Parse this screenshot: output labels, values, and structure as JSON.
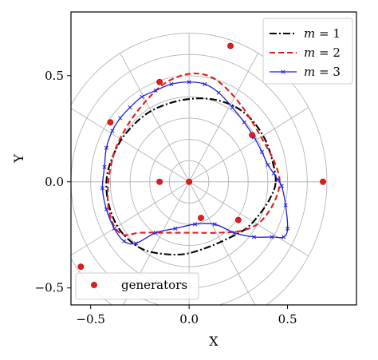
{
  "chart_data": {
    "type": "line",
    "xlabel": "X",
    "ylabel": "Y",
    "xlim": [
      -0.6,
      0.85
    ],
    "ylim": [
      -0.58,
      0.8
    ],
    "xticks": [
      -0.5,
      0.0,
      0.5
    ],
    "xtick_labels": [
      "−0.5",
      "0.0",
      "0.5"
    ],
    "yticks": [
      -0.5,
      0.0,
      0.5
    ],
    "ytick_labels": [
      "−0.5",
      "0.0",
      "0.5"
    ],
    "grid": "polar, rings at r = 0.1 to 0.7, spokes every 30 degrees",
    "polar_grid": {
      "radii": [
        0.1,
        0.2,
        0.3,
        0.4,
        0.5,
        0.6,
        0.7
      ],
      "spoke_step_deg": 30,
      "spoke_radius": 0.7,
      "color": "#b3b3b3"
    },
    "legend_placement": "top-right",
    "legend2_placement": "bottom-left",
    "series": [
      {
        "name": "m = 1",
        "label_var": "m",
        "label_eq": " = 1",
        "color": "#000000",
        "style": "dashdot",
        "x": [
          0.44,
          0.42,
          0.38,
          0.31,
          0.22,
          0.11,
          0.0,
          -0.1,
          -0.2,
          -0.28,
          -0.35,
          -0.4,
          -0.42,
          -0.41,
          -0.37,
          -0.31,
          -0.23,
          -0.13,
          -0.02,
          0.09,
          0.19,
          0.29,
          0.36,
          0.41,
          0.44
        ],
        "y": [
          0.0,
          0.11,
          0.21,
          0.3,
          0.36,
          0.39,
          0.39,
          0.37,
          0.33,
          0.27,
          0.19,
          0.09,
          0.0,
          -0.1,
          -0.2,
          -0.27,
          -0.32,
          -0.34,
          -0.34,
          -0.31,
          -0.27,
          -0.22,
          -0.15,
          -0.08,
          0.0
        ]
      },
      {
        "name": "m = 2",
        "label_var": "m",
        "label_eq": " = 2",
        "color": "#e41a1c",
        "style": "dashed",
        "x": [
          0.46,
          0.43,
          0.36,
          0.28,
          0.2,
          0.12,
          0.04,
          -0.04,
          -0.13,
          -0.22,
          -0.31,
          -0.38,
          -0.41,
          -0.41,
          -0.38,
          -0.33,
          -0.25,
          -0.12,
          0.02,
          0.15,
          0.27,
          0.36,
          0.43,
          0.46
        ],
        "y": [
          0.0,
          0.1,
          0.22,
          0.34,
          0.43,
          0.49,
          0.51,
          0.5,
          0.46,
          0.38,
          0.27,
          0.14,
          0.0,
          -0.12,
          -0.21,
          -0.25,
          -0.24,
          -0.24,
          -0.24,
          -0.24,
          -0.23,
          -0.19,
          -0.1,
          0.0
        ]
      },
      {
        "name": "m = 3",
        "label_var": "m",
        "label_eq": " = 3",
        "color": "#1f1fd6",
        "style": "solid-x-markers",
        "x": [
          0.47,
          0.49,
          0.5,
          0.48,
          0.42,
          0.33,
          0.23,
          0.13,
          0.03,
          -0.07,
          -0.17,
          -0.27,
          -0.33,
          -0.38,
          -0.42,
          -0.44,
          -0.43,
          -0.42,
          -0.39,
          -0.35,
          -0.3,
          -0.24,
          -0.17,
          -0.09,
          0.0,
          0.08,
          0.15,
          0.22,
          0.28,
          0.33,
          0.37,
          0.4,
          0.43,
          0.45,
          0.47
        ],
        "y": [
          -0.02,
          -0.11,
          -0.22,
          -0.26,
          -0.26,
          -0.26,
          -0.24,
          -0.2,
          -0.2,
          -0.22,
          -0.24,
          -0.29,
          -0.28,
          -0.22,
          -0.13,
          -0.03,
          0.07,
          0.16,
          0.24,
          0.3,
          0.35,
          0.4,
          0.43,
          0.46,
          0.47,
          0.46,
          0.42,
          0.35,
          0.28,
          0.21,
          0.14,
          0.08,
          0.04,
          0.01,
          -0.02
        ]
      }
    ],
    "generators": {
      "name": "generators",
      "color": "#e41a1c",
      "x": [
        0.0,
        -0.15,
        -0.15,
        -0.4,
        0.21,
        0.32,
        0.68,
        0.25,
        0.06,
        -0.55
      ],
      "y": [
        0.0,
        0.47,
        0.0,
        0.28,
        0.64,
        0.22,
        0.0,
        -0.18,
        -0.17,
        -0.4
      ]
    }
  }
}
